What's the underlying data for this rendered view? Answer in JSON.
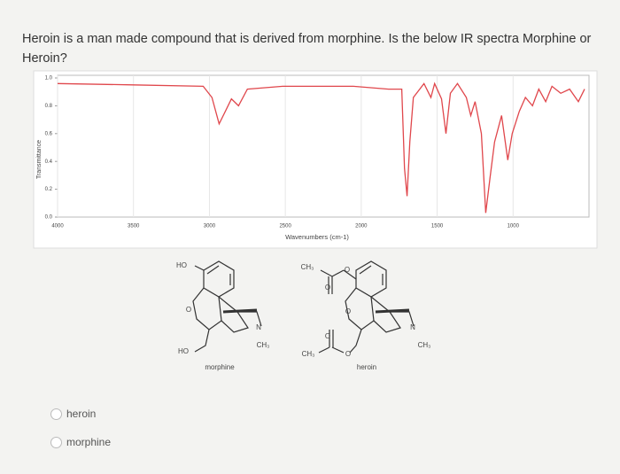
{
  "question": "Heroin is a man made compound that is derived from morphine. Is the below IR spectra Morphine or Heroin?",
  "chart_data": {
    "type": "line",
    "ylabel": "Transmittance",
    "xlabel": "Wavenumbers (cm-1)",
    "color": "#e0474c",
    "grid": true,
    "xlim": [
      4000,
      500
    ],
    "xticks": [
      4000,
      3500,
      3000,
      2500,
      2000,
      1500,
      1000
    ],
    "ylim": [
      0,
      1
    ],
    "yticks": [
      {
        "value": 0,
        "label": "0.0"
      },
      0.2,
      0.4,
      0.6,
      0.8,
      {
        "value": 1,
        "label": "1.0"
      }
    ],
    "x": [
      4000,
      3506,
      3041,
      2983,
      2936,
      2895,
      2855,
      2808,
      2750,
      2517,
      2052,
      1820,
      1733,
      1715,
      1698,
      1680,
      1657,
      1587,
      1541,
      1517,
      1471,
      1442,
      1413,
      1366,
      1308,
      1279,
      1250,
      1209,
      1180,
      1151,
      1122,
      1076,
      1035,
      1006,
      959,
      919,
      872,
      831,
      785,
      744,
      686,
      628,
      570,
      529
    ],
    "values": [
      0.96,
      0.95,
      0.94,
      0.86,
      0.67,
      0.76,
      0.85,
      0.8,
      0.92,
      0.94,
      0.94,
      0.92,
      0.92,
      0.35,
      0.15,
      0.54,
      0.86,
      0.96,
      0.86,
      0.96,
      0.85,
      0.6,
      0.89,
      0.96,
      0.86,
      0.73,
      0.83,
      0.6,
      0.03,
      0.29,
      0.54,
      0.73,
      0.41,
      0.6,
      0.76,
      0.86,
      0.8,
      0.92,
      0.83,
      0.94,
      0.89,
      0.92,
      0.83,
      0.92
    ]
  },
  "structures": [
    {
      "name": "morphine",
      "labels": [
        "HO",
        "O",
        "HO",
        "N",
        "CH₃"
      ]
    },
    {
      "name": "heroin",
      "labels": [
        "CH₃",
        "O",
        "O",
        "O",
        "N",
        "CH₃",
        "CH₃",
        "O",
        "O"
      ]
    }
  ],
  "options": [
    "heroin",
    "morphine"
  ]
}
